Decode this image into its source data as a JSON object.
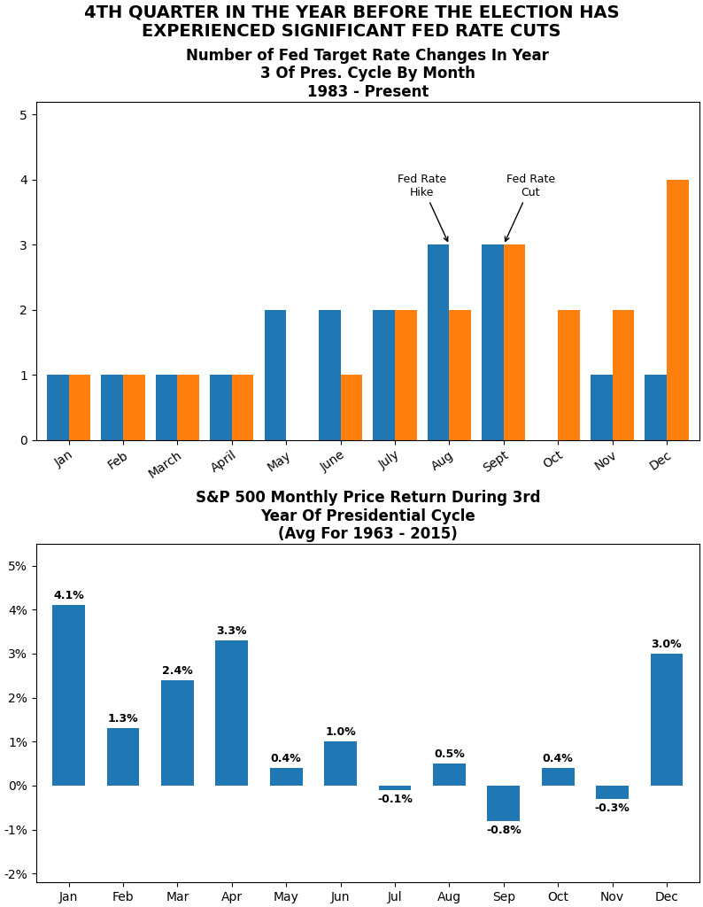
{
  "title": "4TH QUARTER IN THE YEAR BEFORE THE ELECTION HAS\nEXPERIENCED SIGNIFICANT FED RATE CUTS",
  "chart_data": [
    {
      "type": "bar",
      "title": "Number of Fed Target Rate Changes In Year\n3 Of Pres. Cycle By Month\n1983 - Present",
      "categories": [
        "Jan",
        "Feb",
        "March",
        "April",
        "May",
        "June",
        "July",
        "Aug",
        "Sept",
        "Oct",
        "Nov",
        "Dec"
      ],
      "series": [
        {
          "values": [
            1,
            1,
            1,
            1,
            2,
            2,
            2,
            3,
            3,
            0,
            1,
            1
          ]
        },
        {
          "values": [
            1,
            1,
            1,
            1,
            0,
            1,
            2,
            2,
            3,
            2,
            2,
            4
          ]
        }
      ],
      "ylim": [
        0,
        5.2
      ],
      "yticks": [
        0,
        1,
        2,
        3,
        4,
        5
      ],
      "annotations": [
        {
          "text": "Fed Rate\nHike",
          "x": "Aug",
          "y": 3
        },
        {
          "text": "Fed Rate\nCut",
          "x": "Sept",
          "y": 3
        }
      ]
    },
    {
      "type": "bar",
      "title": "S&P 500 Monthly Price Return During 3rd\nYear Of Presidential Cycle\n(Avg For 1963 - 2015)",
      "categories": [
        "Jan",
        "Feb",
        "Mar",
        "Apr",
        "May",
        "Jun",
        "Jul",
        "Aug",
        "Sep",
        "Oct",
        "Nov",
        "Dec"
      ],
      "values": [
        4.1,
        1.3,
        2.4,
        3.3,
        0.4,
        1.0,
        -0.1,
        0.5,
        -0.8,
        0.4,
        -0.3,
        3.0
      ],
      "value_labels": [
        "4.1%",
        "1.3%",
        "2.4%",
        "3.3%",
        "0.4%",
        "1.0%",
        "-0.1%",
        "0.5%",
        "-0.8%",
        "0.4%",
        "-0.3%",
        "3.0%"
      ],
      "data_labels": true,
      "ylim": [
        -2.2,
        5.5
      ],
      "yticks": [
        {
          "value": -2,
          "label": "-2%"
        },
        {
          "value": -1,
          "label": "-1%"
        },
        {
          "value": 0,
          "label": "0%"
        },
        {
          "value": 1,
          "label": "1%"
        },
        {
          "value": 2,
          "label": "2%"
        },
        {
          "value": 3,
          "label": "3%"
        },
        {
          "value": 4,
          "label": "4%"
        },
        {
          "value": 5,
          "label": "5%"
        }
      ]
    }
  ]
}
